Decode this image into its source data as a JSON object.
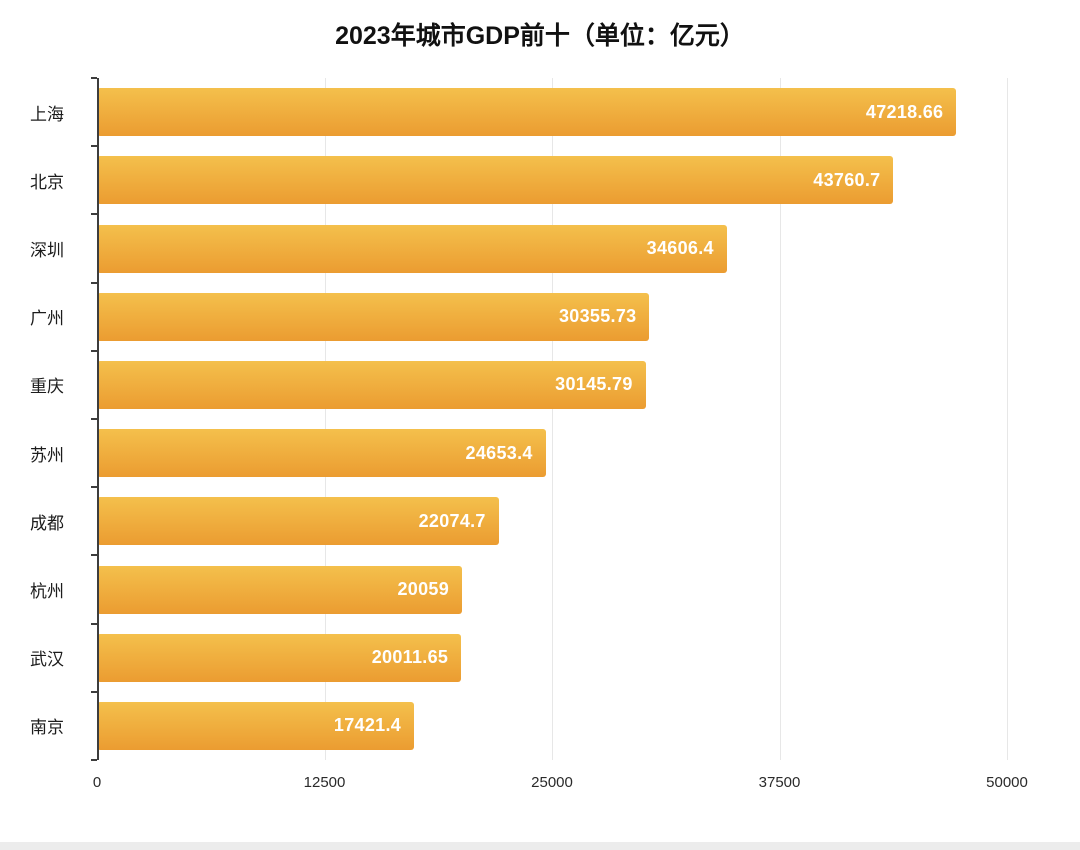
{
  "title": "2023年城市GDP前十（单位：亿元）",
  "chart_data": {
    "type": "bar",
    "orientation": "horizontal",
    "title": "2023年城市GDP前十（单位：亿元）",
    "categories": [
      "上海",
      "北京",
      "深圳",
      "广州",
      "重庆",
      "苏州",
      "成都",
      "杭州",
      "武汉",
      "南京"
    ],
    "values": [
      47218.66,
      43760.7,
      34606.4,
      30355.73,
      30145.79,
      24653.4,
      22074.7,
      20059,
      20011.65,
      17421.4
    ],
    "value_labels": [
      "47218.66",
      "43760.7",
      "34606.4",
      "30355.73",
      "30145.79",
      "24653.4",
      "22074.7",
      "20059",
      "20011.65",
      "17421.4"
    ],
    "xlabel": "",
    "ylabel": "",
    "xlim": [
      0,
      50000
    ],
    "x_ticks": [
      0,
      12500,
      25000,
      37500,
      50000
    ],
    "x_tick_labels": [
      "0",
      "12500",
      "25000",
      "37500",
      "50000"
    ],
    "grid": true,
    "legend": "none",
    "bar_color_top": "#F4C04C",
    "bar_color_bottom": "#EB9C31",
    "value_label_color": "#FFFFFF",
    "gridline_color": "#E7E7E7",
    "axis_color": "#3D3D3D"
  }
}
